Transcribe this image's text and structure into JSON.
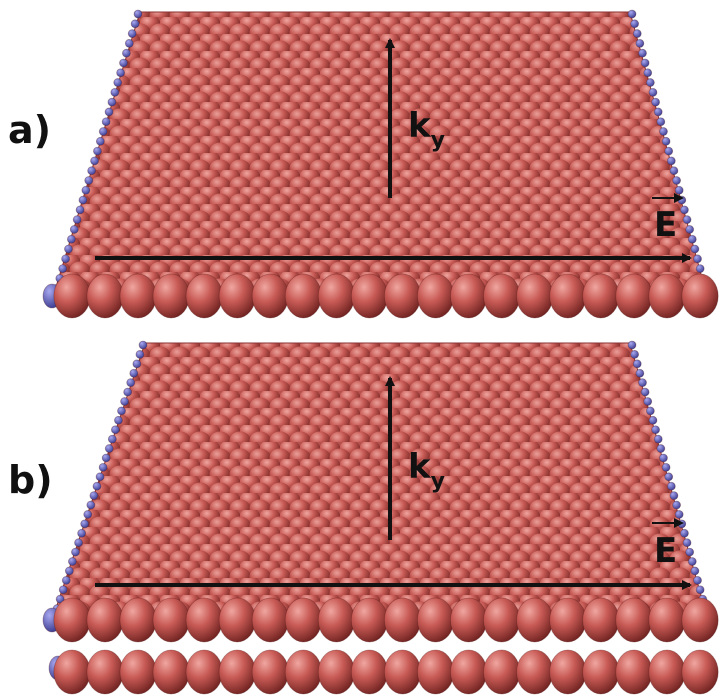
{
  "panels": [
    {
      "label": "a)",
      "arrow_vertical_label": "k",
      "arrow_vertical_subscript": "y",
      "arrow_horizontal_label": "E",
      "layers": 1
    },
    {
      "label": "b)",
      "arrow_vertical_label": "k",
      "arrow_vertical_subscript": "y",
      "arrow_horizontal_label": "E",
      "layers": 2
    }
  ],
  "colors": {
    "atom_main": "#c0504d",
    "atom_light": "#e38b86",
    "atom_dark": "#7a2624",
    "edge_atom": "#5a5ab8",
    "arrow": "#111111",
    "background": "#ffffff"
  }
}
